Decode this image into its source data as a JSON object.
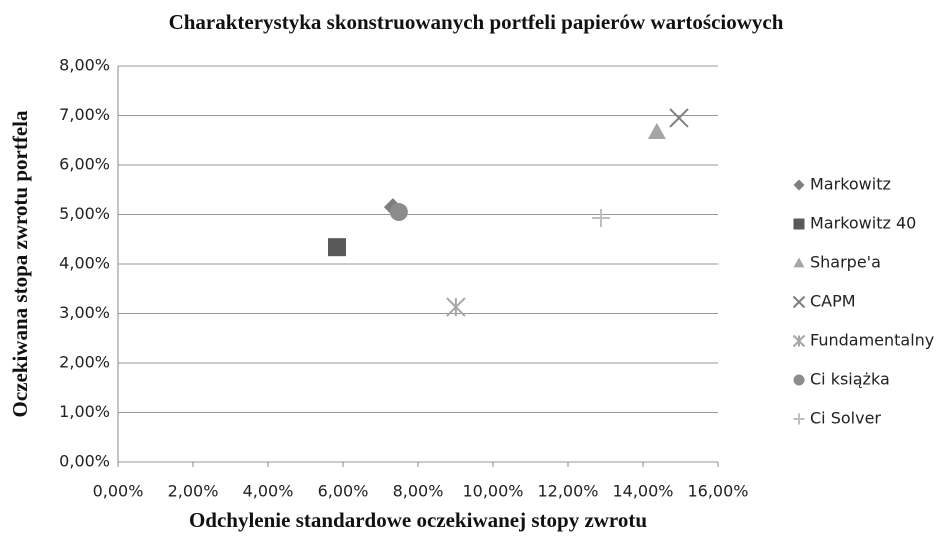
{
  "chart_data": {
    "type": "scatter",
    "title": "Charakterystyka skonstruowanych portfeli papierów wartościowych",
    "xlabel": "Odchylenie standardowe oczekiwanej stopy zwrotu",
    "ylabel": "Oczekiwana stopa zwrotu portfela",
    "series": [
      {
        "name": "Markowitz",
        "color": "#7f7f7f",
        "marker": "diamond",
        "x": [
          7.33
        ],
        "values": [
          5.15
        ]
      },
      {
        "name": "Markowitz 40",
        "color": "#595959",
        "marker": "square",
        "x": [
          5.84
        ],
        "values": [
          4.34
        ]
      },
      {
        "name": "Sharpe'a",
        "color": "#a6a6a6",
        "marker": "triangle",
        "x": [
          14.37
        ],
        "values": [
          6.67
        ]
      },
      {
        "name": "CAPM",
        "color": "#7f7f7f",
        "marker": "x",
        "x": [
          14.96
        ],
        "values": [
          6.95
        ]
      },
      {
        "name": "Fundamentalny",
        "color": "#a6a6a6",
        "marker": "asterisk",
        "x": [
          9.01
        ],
        "values": [
          3.13
        ]
      },
      {
        "name": "Ci książka",
        "color": "#8c8c8c",
        "marker": "circle",
        "x": [
          7.49
        ],
        "values": [
          5.05
        ]
      },
      {
        "name": "Ci Solver",
        "color": "#bfbfbf",
        "marker": "plus",
        "x": [
          12.88
        ],
        "values": [
          4.93
        ]
      }
    ],
    "xlim": [
      0,
      16
    ],
    "xticks": [
      {
        "value": 0,
        "label": "0,00%"
      },
      {
        "value": 2,
        "label": "2,00%"
      },
      {
        "value": 4,
        "label": "4,00%"
      },
      {
        "value": 6,
        "label": "6,00%"
      },
      {
        "value": 8,
        "label": "8,00%"
      },
      {
        "value": 10,
        "label": "10,00%"
      },
      {
        "value": 12,
        "label": "12,00%"
      },
      {
        "value": 14,
        "label": "14,00%"
      },
      {
        "value": 16,
        "label": "16,00%"
      }
    ],
    "ylim": [
      0,
      8
    ],
    "yticks": [
      {
        "value": 0,
        "label": "0,00%"
      },
      {
        "value": 1,
        "label": "1,00%"
      },
      {
        "value": 2,
        "label": "2,00%"
      },
      {
        "value": 3,
        "label": "3,00%"
      },
      {
        "value": 4,
        "label": "4,00%"
      },
      {
        "value": 5,
        "label": "5,00%"
      },
      {
        "value": 6,
        "label": "6,00%"
      },
      {
        "value": 7,
        "label": "7,00%"
      },
      {
        "value": 8,
        "label": "8,00%"
      }
    ],
    "grid": true,
    "legend": "right"
  }
}
